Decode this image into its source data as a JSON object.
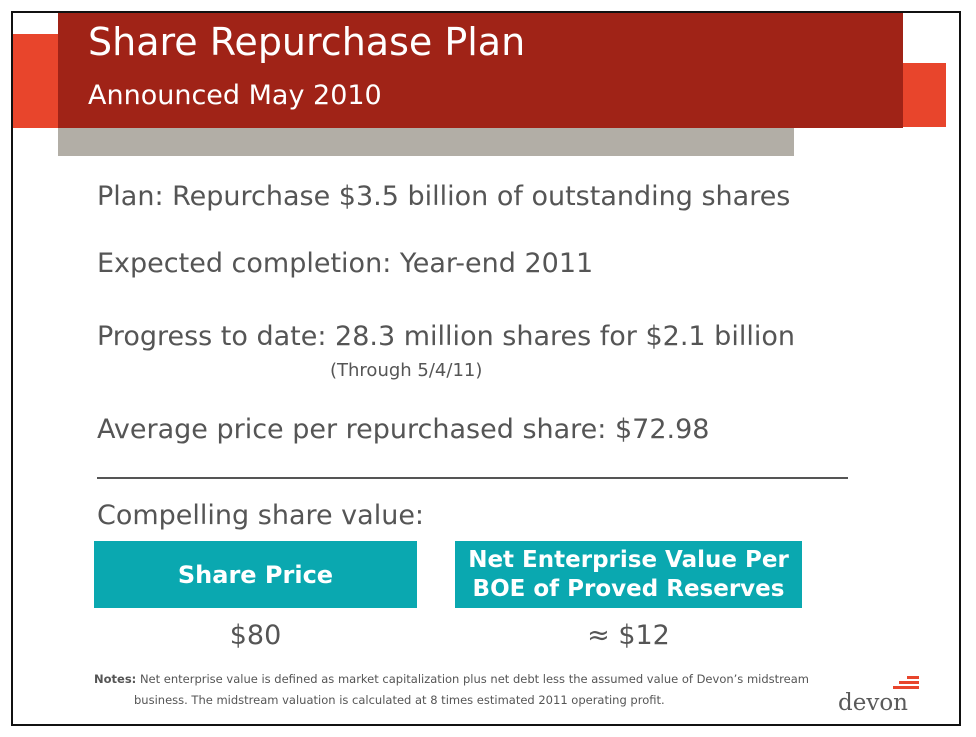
{
  "slide": {
    "title": "Share Repurchase Plan",
    "subtitle": "Announced May 2010",
    "lines": {
      "plan": "Plan: Repurchase $3.5 billion of outstanding shares",
      "completion": "Expected completion: Year-end 2011",
      "progress": "Progress to date: 28.3 million shares for $2.1 billion",
      "progress_note": "(Through 5/4/11)",
      "average_price": "Average price per repurchased share: $72.98",
      "compelling": "Compelling share value:"
    },
    "boxes": {
      "share_price_label": "Share Price",
      "share_price_value": "$80",
      "nev_label_line1": "Net Enterprise Value Per",
      "nev_label_line2": "BOE of Proved Reserves",
      "nev_value": "≈ $12"
    },
    "notes": {
      "label": "Notes:",
      "line1": "Net enterprise value is defined as market capitalization plus net debt less the assumed value of Devon’s midstream",
      "line2": "business. The midstream valuation is calculated at 8 times estimated 2011 operating profit."
    },
    "logo_text": "devon"
  },
  "colors": {
    "title_band": "#a02317",
    "accent_orange": "#e8452c",
    "accent_gray": "#b2aea6",
    "teal": "#0aa8b0",
    "body_text": "#555555"
  }
}
